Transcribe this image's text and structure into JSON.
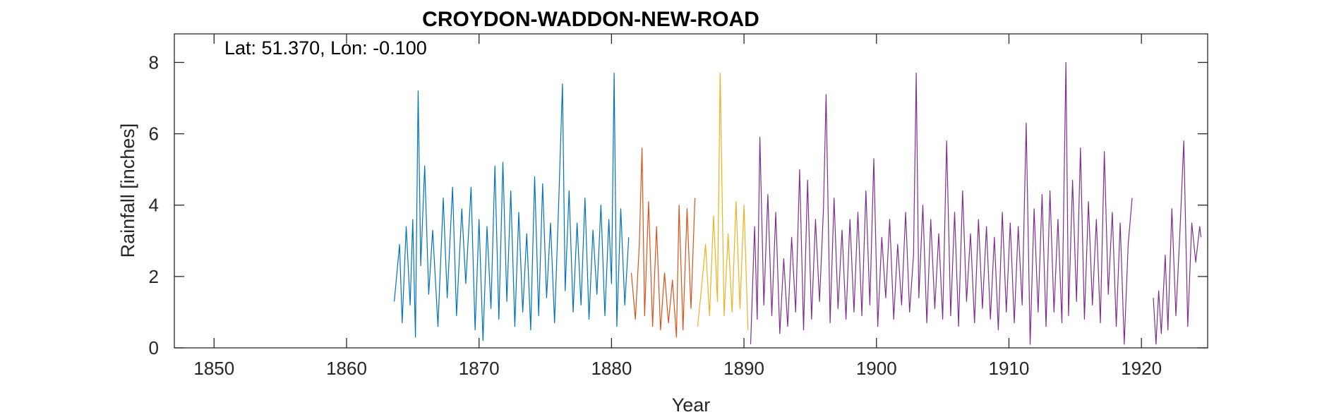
{
  "chart_data": {
    "type": "line",
    "title": "CROYDON-WADDON-NEW-ROAD",
    "annotation": "Lat: 51.370, Lon: -0.100",
    "xlabel": "Year",
    "ylabel": "Rainfall [inches]",
    "xlim": [
      1847,
      1925
    ],
    "ylim": [
      0,
      8.8
    ],
    "xticks": [
      "1850",
      "1860",
      "1870",
      "1880",
      "1890",
      "1900",
      "1910",
      "1920"
    ],
    "yticks": [
      "0",
      "2",
      "4",
      "6",
      "8"
    ],
    "grid": false,
    "legend": "none",
    "series": [
      {
        "color": "#0072BD",
        "x": [
          1863.6,
          1864.0,
          1864.2,
          1864.5,
          1864.8,
          1865.0,
          1865.2,
          1865.4,
          1865.6,
          1865.9,
          1866.2,
          1866.5,
          1866.9,
          1867.3,
          1867.6,
          1868.0,
          1868.3,
          1868.7,
          1869.0,
          1869.4,
          1869.7,
          1870.0,
          1870.3,
          1870.6,
          1870.9,
          1871.2,
          1871.5,
          1871.8,
          1872.1,
          1872.4,
          1872.7,
          1873.0,
          1873.3,
          1873.6,
          1873.9,
          1874.2,
          1874.5,
          1874.8,
          1875.1,
          1875.4,
          1875.7,
          1876.0,
          1876.3,
          1876.5,
          1876.8,
          1877.1,
          1877.4,
          1877.7,
          1878.0,
          1878.3,
          1878.6,
          1878.9,
          1879.2,
          1879.5,
          1879.8,
          1880.0,
          1880.2,
          1880.4,
          1880.7,
          1881.0,
          1881.3
        ],
        "y": [
          1.3,
          2.9,
          0.7,
          3.4,
          1.2,
          3.6,
          0.3,
          7.2,
          2.3,
          5.1,
          1.5,
          3.3,
          0.6,
          4.2,
          1.4,
          4.5,
          0.9,
          3.9,
          1.8,
          4.5,
          0.5,
          3.6,
          0.2,
          3.4,
          1.1,
          5.1,
          0.8,
          5.2,
          1.3,
          4.4,
          0.6,
          3.8,
          1.0,
          3.2,
          0.5,
          4.8,
          0.9,
          4.6,
          1.4,
          3.5,
          0.7,
          3.9,
          7.4,
          1.6,
          4.4,
          1.0,
          3.5,
          1.2,
          4.2,
          0.8,
          3.3,
          1.5,
          4.0,
          0.9,
          3.6,
          1.8,
          7.7,
          0.6,
          3.9,
          1.2,
          3.1
        ]
      },
      {
        "color": "#D95319",
        "x": [
          1881.5,
          1881.8,
          1882.1,
          1882.3,
          1882.5,
          1882.8,
          1883.1,
          1883.4,
          1883.7,
          1884.0,
          1884.3,
          1884.6,
          1884.9,
          1885.1,
          1885.4,
          1885.7,
          1886.0,
          1886.3
        ],
        "y": [
          2.1,
          0.8,
          2.9,
          5.6,
          0.9,
          4.1,
          0.6,
          3.4,
          0.5,
          2.1,
          0.7,
          1.9,
          0.3,
          4.0,
          0.5,
          3.9,
          1.1,
          4.2
        ]
      },
      {
        "color": "#EDB120",
        "x": [
          1886.5,
          1886.8,
          1887.1,
          1887.4,
          1887.7,
          1888.0,
          1888.2,
          1888.5,
          1888.8,
          1889.1,
          1889.4,
          1889.7,
          1890.0,
          1890.3
        ],
        "y": [
          0.6,
          1.7,
          2.9,
          0.9,
          3.7,
          1.3,
          7.7,
          0.9,
          3.2,
          1.0,
          4.1,
          1.1,
          4.0,
          0.5
        ]
      },
      {
        "color": "#7E2F8E",
        "x": [
          1890.5,
          1890.8,
          1891.0,
          1891.2,
          1891.5,
          1891.8,
          1892.1,
          1892.4,
          1892.7,
          1893.0,
          1893.3,
          1893.6,
          1893.9,
          1894.2,
          1894.5,
          1894.8,
          1895.1,
          1895.4,
          1895.7,
          1896.0,
          1896.2,
          1896.5,
          1896.8,
          1897.1,
          1897.4,
          1897.7,
          1898.0,
          1898.3,
          1898.6,
          1898.9,
          1899.2,
          1899.5,
          1899.8,
          1900.1,
          1900.4,
          1900.7,
          1901.0,
          1901.3,
          1901.6,
          1901.9,
          1902.2,
          1902.5,
          1902.8,
          1903.0,
          1903.2,
          1903.5,
          1903.8,
          1904.1,
          1904.4,
          1904.7,
          1905.0,
          1905.3,
          1905.6,
          1905.9,
          1906.2,
          1906.5,
          1906.8,
          1907.1,
          1907.4,
          1907.7,
          1908.0,
          1908.3,
          1908.6,
          1908.9,
          1909.2,
          1909.5,
          1909.8,
          1910.1,
          1910.4,
          1910.7,
          1911.0,
          1911.3,
          1911.6,
          1911.9,
          1912.2,
          1912.5,
          1912.8,
          1913.1,
          1913.4,
          1913.7,
          1914.0,
          1914.3,
          1914.5,
          1914.8,
          1915.1,
          1915.4,
          1915.7,
          1916.0,
          1916.3,
          1916.6,
          1916.9,
          1917.2,
          1917.5,
          1917.8,
          1918.1,
          1918.4,
          1918.7,
          1919.0,
          1919.3
        ],
        "y": [
          0.1,
          3.4,
          0.8,
          5.9,
          1.2,
          4.3,
          0.9,
          3.8,
          0.4,
          2.5,
          0.6,
          3.1,
          1.0,
          5.0,
          0.5,
          4.7,
          0.8,
          3.6,
          1.3,
          3.9,
          7.1,
          0.7,
          4.2,
          1.1,
          3.3,
          0.8,
          3.6,
          1.0,
          3.8,
          0.9,
          4.4,
          1.2,
          5.3,
          0.6,
          3.1,
          1.4,
          3.6,
          0.8,
          2.9,
          1.2,
          3.8,
          1.0,
          2.6,
          7.7,
          1.4,
          4.0,
          0.7,
          3.6,
          1.1,
          3.2,
          0.8,
          5.8,
          0.9,
          3.8,
          0.6,
          4.4,
          1.3,
          3.2,
          0.7,
          3.6,
          1.1,
          3.4,
          0.8,
          3.1,
          0.5,
          3.8,
          1.0,
          3.5,
          0.7,
          3.4,
          1.2,
          6.3,
          0.1,
          3.9,
          1.0,
          4.3,
          0.6,
          4.4,
          1.0,
          3.6,
          0.7,
          8.0,
          0.9,
          4.7,
          1.3,
          5.6,
          0.8,
          4.1,
          1.2,
          3.6,
          0.7,
          5.5,
          1.5,
          3.8,
          0.6,
          3.5,
          0.1,
          2.9,
          4.2
        ]
      },
      {
        "color": "#7E2F8E",
        "x": [
          1920.9,
          1921.1,
          1921.3,
          1921.5,
          1921.8,
          1922.0,
          1922.3,
          1922.6,
          1922.9,
          1923.2,
          1923.5,
          1923.8,
          1924.1,
          1924.4,
          1924.5
        ],
        "y": [
          1.4,
          0.1,
          1.6,
          0.4,
          2.6,
          0.5,
          3.9,
          0.9,
          3.2,
          5.8,
          0.6,
          3.5,
          2.4,
          3.4,
          3.1
        ]
      }
    ]
  }
}
